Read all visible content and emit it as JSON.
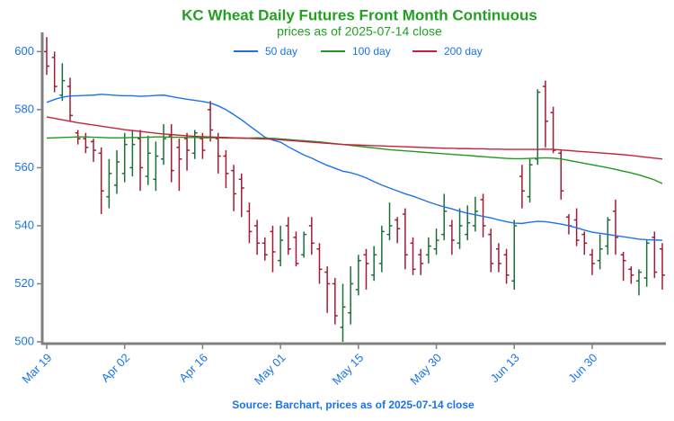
{
  "chart_data": {
    "type": "ohlc",
    "title": "KC Wheat Daily Futures Front Month Continuous",
    "subtitle": "prices as of 2025-07-14 close",
    "source": "Source: Barchart, prices as of 2025-07-14 close",
    "categories": [
      "Mar 19",
      null,
      null,
      null,
      null,
      null,
      null,
      null,
      null,
      null,
      "Apr 02",
      null,
      null,
      null,
      null,
      null,
      null,
      null,
      null,
      null,
      "Apr 16",
      null,
      null,
      null,
      null,
      null,
      null,
      null,
      null,
      null,
      "May 01",
      null,
      null,
      null,
      null,
      null,
      null,
      null,
      null,
      null,
      "May 15",
      null,
      null,
      null,
      null,
      null,
      null,
      null,
      null,
      null,
      "May 30",
      null,
      null,
      null,
      null,
      null,
      null,
      null,
      null,
      null,
      "Jun 13",
      null,
      null,
      null,
      null,
      null,
      null,
      null,
      null,
      null,
      "Jun 30",
      null,
      null,
      null,
      null,
      null,
      null,
      null,
      null,
      null
    ],
    "open": [
      600,
      598,
      585,
      588,
      572,
      570,
      569,
      565,
      550,
      554,
      558,
      560,
      570,
      557,
      556,
      563,
      571,
      567,
      570,
      565,
      570,
      580,
      570,
      564,
      559,
      556,
      545,
      540,
      534,
      538,
      528,
      540,
      536,
      530,
      540,
      532,
      524,
      520,
      505,
      510,
      518,
      530,
      523,
      527,
      537,
      542,
      544,
      534,
      530,
      530,
      532,
      537,
      540,
      534,
      537,
      540,
      549,
      537,
      532,
      530,
      521,
      557,
      550,
      563,
      588,
      579,
      565,
      543,
      542,
      537,
      530,
      528,
      533,
      545,
      530,
      525,
      521,
      522,
      536,
      532
    ],
    "high": [
      605,
      600,
      596,
      591,
      573,
      572,
      570,
      567,
      563,
      566,
      572,
      573,
      573,
      571,
      569,
      575,
      575,
      570,
      572,
      573,
      572,
      583,
      572,
      566,
      561,
      558,
      548,
      542,
      536,
      540,
      540,
      543,
      538,
      538,
      543,
      534,
      526,
      522,
      520,
      526,
      530,
      532,
      533,
      540,
      548,
      543,
      546,
      536,
      532,
      536,
      539,
      551,
      542,
      546,
      547,
      550,
      551,
      539,
      534,
      532,
      542,
      561,
      563,
      587,
      590,
      581,
      566,
      544,
      546,
      538,
      532,
      537,
      543,
      549,
      531,
      526,
      525,
      535,
      538,
      534
    ],
    "low": [
      592,
      586,
      583,
      576,
      568,
      565,
      562,
      544,
      546,
      551,
      555,
      557,
      552,
      554,
      552,
      561,
      555,
      552,
      559,
      563,
      563,
      569,
      558,
      553,
      545,
      543,
      534,
      530,
      528,
      524,
      526,
      530,
      526,
      529,
      530,
      520,
      510,
      506,
      500,
      506,
      516,
      518,
      521,
      524,
      535,
      534,
      525,
      523,
      523,
      527,
      530,
      535,
      530,
      532,
      535,
      538,
      536,
      524,
      524,
      520,
      518,
      546,
      548,
      561,
      567,
      565,
      549,
      537,
      533,
      530,
      523,
      525,
      530,
      530,
      521,
      520,
      516,
      519,
      522,
      518
    ],
    "close": [
      595,
      588,
      590,
      578,
      570,
      567,
      566,
      552,
      558,
      562,
      568,
      568,
      560,
      565,
      564,
      570,
      559,
      563,
      566,
      572,
      566,
      573,
      564,
      558,
      551,
      553,
      538,
      534,
      530,
      531,
      535,
      532,
      527,
      537,
      534,
      525,
      520,
      509,
      512,
      520,
      528,
      527,
      530,
      538,
      540,
      539,
      530,
      525,
      527,
      533,
      535,
      545,
      535,
      540,
      541,
      545,
      540,
      527,
      527,
      523,
      540,
      552,
      561,
      586,
      576,
      566,
      552,
      540,
      535,
      534,
      527,
      532,
      542,
      536,
      528,
      523,
      524,
      534,
      524,
      523
    ],
    "up_color": "#1e6e3a",
    "down_color": "#a01c34",
    "series": [
      {
        "name": "50 day",
        "color": "#1a73e8",
        "values": [
          582.5,
          583.5,
          584.3,
          584.7,
          584.8,
          584.9,
          585.0,
          585.3,
          585.1,
          584.9,
          584.8,
          584.8,
          584.6,
          584.7,
          584.9,
          585.0,
          584.5,
          584.0,
          583.6,
          583.2,
          582.8,
          582.3,
          581.3,
          580.0,
          578.3,
          576.5,
          574.5,
          572.5,
          570.5,
          569.5,
          568.8,
          567.2,
          565.8,
          564.4,
          563.3,
          562.0,
          560.8,
          559.8,
          558.8,
          558.3,
          557.5,
          556.5,
          555.2,
          554.0,
          553.0,
          552.0,
          551.0,
          550.2,
          549.2,
          548.2,
          547.3,
          546.5,
          545.8,
          545.0,
          544.3,
          543.8,
          543.2,
          542.7,
          542.0,
          541.4,
          540.9,
          540.8,
          541.2,
          541.5,
          541.4,
          541.0,
          540.6,
          540.0,
          539.3,
          538.5,
          537.8,
          537.4,
          537.0,
          536.6,
          536.2,
          535.8,
          535.4,
          535.2,
          535.1,
          535.0
        ]
      },
      {
        "name": "100 day",
        "color": "#1e9a1e",
        "values": [
          570.2,
          570.3,
          570.4,
          570.5,
          570.6,
          570.6,
          570.5,
          570.4,
          570.3,
          570.3,
          570.3,
          570.4,
          570.4,
          570.5,
          570.6,
          570.6,
          570.5,
          570.5,
          570.4,
          570.4,
          570.3,
          570.3,
          570.3,
          570.2,
          570.2,
          570.2,
          570.2,
          570.3,
          570.2,
          570.1,
          569.9,
          569.7,
          569.5,
          569.3,
          569.1,
          568.9,
          568.6,
          568.3,
          568.0,
          567.7,
          567.4,
          567.1,
          566.8,
          566.5,
          566.2,
          566.0,
          565.8,
          565.6,
          565.4,
          565.2,
          565.0,
          564.8,
          564.6,
          564.4,
          564.2,
          564.0,
          563.8,
          563.6,
          563.4,
          563.2,
          563.1,
          563.1,
          563.2,
          563.3,
          563.4,
          563.3,
          563.0,
          562.5,
          562.0,
          561.5,
          561.0,
          560.5,
          560.0,
          559.4,
          558.8,
          558.2,
          557.5,
          556.7,
          555.8,
          554.5
        ]
      },
      {
        "name": "200 day",
        "color": "#c8203c",
        "values": [
          577.5,
          577.0,
          576.5,
          576.0,
          575.5,
          575.1,
          574.7,
          574.3,
          573.9,
          573.5,
          573.1,
          572.8,
          572.5,
          572.2,
          571.9,
          571.6,
          571.4,
          571.2,
          571.0,
          570.8,
          570.7,
          570.6,
          570.5,
          570.4,
          570.3,
          570.2,
          570.1,
          570.0,
          569.9,
          569.8,
          569.6,
          569.4,
          569.2,
          569.0,
          568.8,
          568.6,
          568.4,
          568.2,
          568.0,
          567.9,
          567.8,
          567.7,
          567.6,
          567.5,
          567.4,
          567.3,
          567.2,
          567.1,
          567.0,
          566.9,
          566.8,
          566.7,
          566.7,
          566.6,
          566.6,
          566.5,
          566.5,
          566.4,
          566.4,
          566.3,
          566.3,
          566.3,
          566.3,
          566.3,
          566.4,
          566.3,
          566.1,
          565.9,
          565.7,
          565.5,
          565.3,
          565.1,
          564.9,
          564.7,
          564.5,
          564.2,
          563.9,
          563.6,
          563.3,
          563.0
        ]
      }
    ],
    "ylim": [
      500,
      606
    ],
    "yticks": [
      500,
      520,
      540,
      560,
      580,
      600
    ],
    "legend": "top"
  }
}
